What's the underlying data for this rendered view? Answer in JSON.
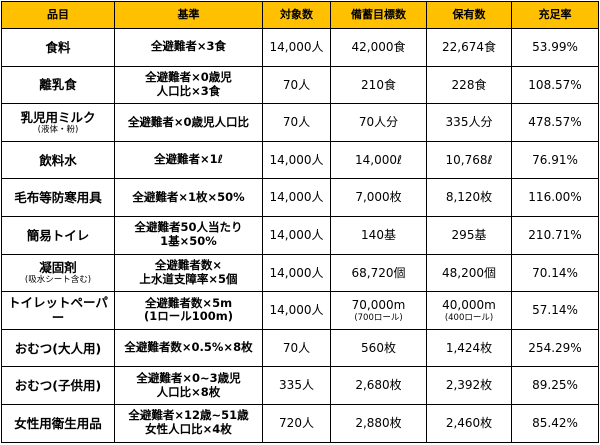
{
  "headers": [
    "品目",
    "基準",
    "対象数",
    "備蓄目標数",
    "保有数",
    "充足率"
  ],
  "rows": [
    {
      "item": "食料",
      "item_sub": "",
      "basis": [
        "全避難者×3食"
      ],
      "target": "14,000人",
      "goal": "42,000食",
      "goal_sub": "",
      "held": "22,674食",
      "held_sub": "",
      "rate": "53.99%"
    },
    {
      "item": "離乳食",
      "item_sub": "",
      "basis": [
        "全避難者×0歳児",
        "人口比×3食"
      ],
      "target": "70人",
      "goal": "210食",
      "goal_sub": "",
      "held": "228食",
      "held_sub": "",
      "rate": "108.57%"
    },
    {
      "item": "乳児用ミルク",
      "item_sub": "(液体・粉)",
      "basis": [
        "全避難者×0歳児人口比"
      ],
      "target": "70人",
      "goal": "70人分",
      "goal_sub": "",
      "held": "335人分",
      "held_sub": "",
      "rate": "478.57%"
    },
    {
      "item": "飲料水",
      "item_sub": "",
      "basis": [
        "全避難者×1ℓ"
      ],
      "target": "14,000人",
      "goal": "14,000ℓ",
      "goal_sub": "",
      "held": "10,768ℓ",
      "held_sub": "",
      "rate": "76.91%"
    },
    {
      "item": "毛布等防寒用具",
      "item_sub": "",
      "basis": [
        "全避難者×1枚×50%"
      ],
      "target": "14,000人",
      "goal": "7,000枚",
      "goal_sub": "",
      "held": "8,120枚",
      "held_sub": "",
      "rate": "116.00%"
    },
    {
      "item": "簡易トイレ",
      "item_sub": "",
      "basis": [
        "全避難者50人当たり",
        "1基×50%"
      ],
      "target": "14,000人",
      "goal": "140基",
      "goal_sub": "",
      "held": "295基",
      "held_sub": "",
      "rate": "210.71%"
    },
    {
      "item": "凝固剤",
      "item_sub": "(吸水シート含む)",
      "basis": [
        "全避難者数×",
        "上水道支障率×5個"
      ],
      "target": "14,000人",
      "goal": "68,720個",
      "goal_sub": "",
      "held": "48,200個",
      "held_sub": "",
      "rate": "70.14%"
    },
    {
      "item": "トイレットペーパー",
      "item_sub": "",
      "basis": [
        "全避難者数×5m",
        "(1ロール100m)"
      ],
      "target": "14,000人",
      "goal": "70,000m",
      "goal_sub": "(700ロール)",
      "held": "40,000m",
      "held_sub": "(400ロール)",
      "rate": "57.14%"
    },
    {
      "item": "おむつ(大人用)",
      "item_sub": "",
      "basis": [
        "全避難者数×0.5%×8枚"
      ],
      "target": "70人",
      "goal": "560枚",
      "goal_sub": "",
      "held": "1,424枚",
      "held_sub": "",
      "rate": "254.29%"
    },
    {
      "item": "おむつ(子供用)",
      "item_sub": "",
      "basis": [
        "全避難者×0~3歳児",
        "人口比×8枚"
      ],
      "target": "335人",
      "goal": "2,680枚",
      "goal_sub": "",
      "held": "2,392枚",
      "held_sub": "",
      "rate": "89.25%"
    },
    {
      "item": "女性用衛生用品",
      "item_sub": "",
      "basis": [
        "全避難者×12歳~51歳",
        "女性人口比×4枚"
      ],
      "target": "720人",
      "goal": "2,880枚",
      "goal_sub": "",
      "held": "2,460枚",
      "held_sub": "",
      "rate": "85.42%"
    }
  ]
}
